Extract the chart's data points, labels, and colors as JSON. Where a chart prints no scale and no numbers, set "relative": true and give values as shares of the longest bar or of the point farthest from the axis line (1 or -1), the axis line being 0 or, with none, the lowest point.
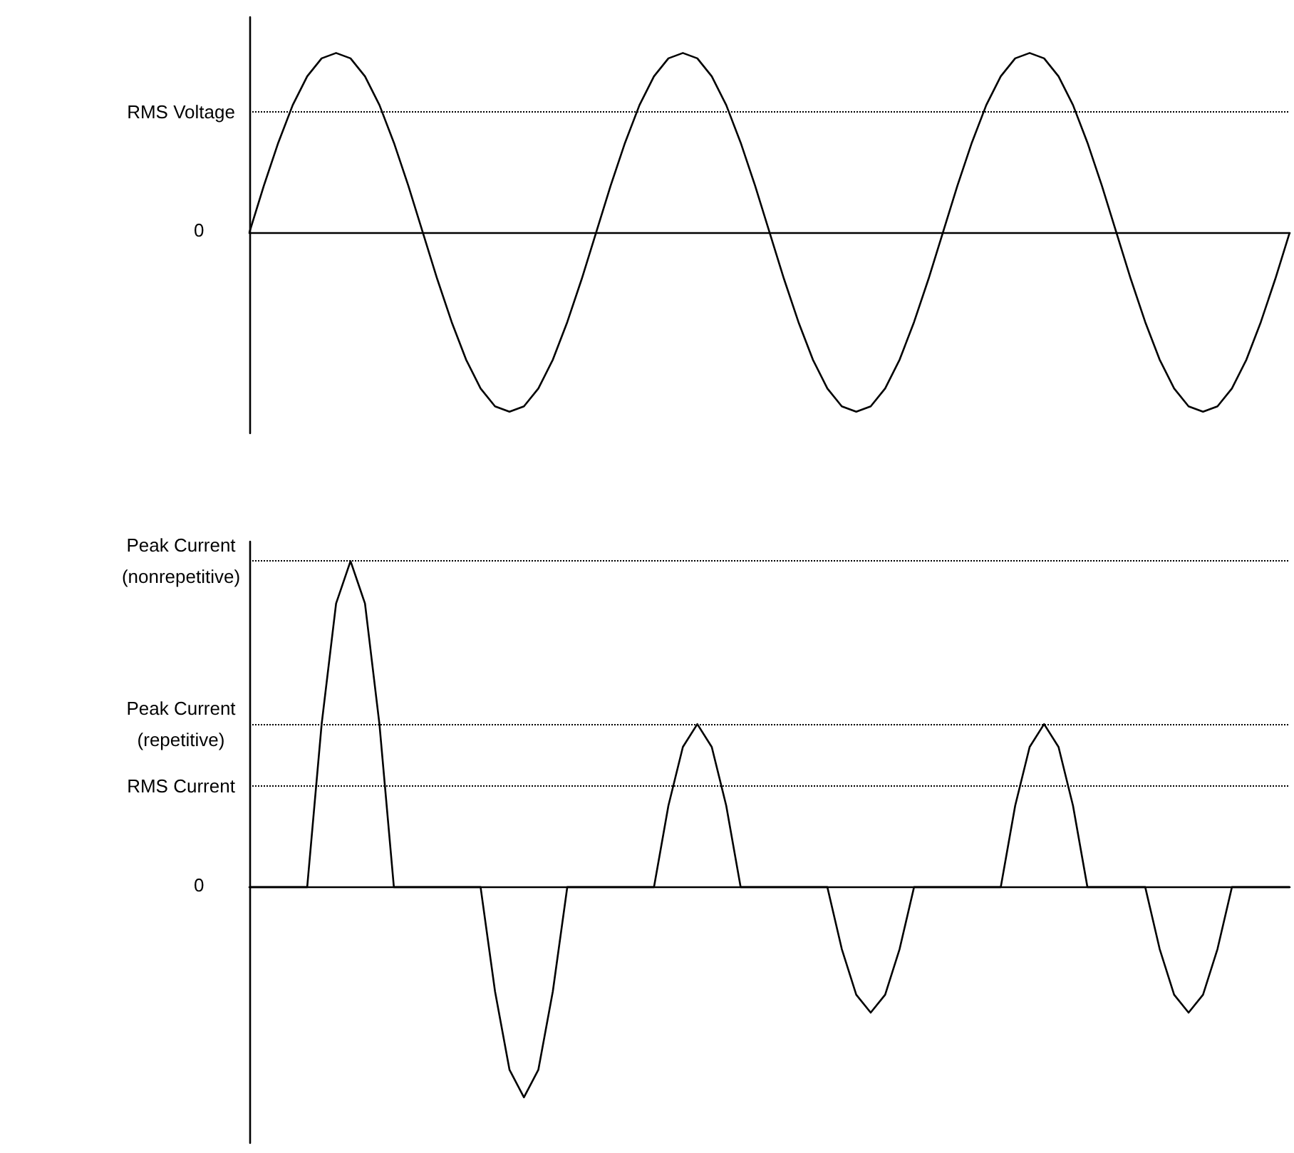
{
  "chart_data": [
    {
      "type": "line",
      "relative": true,
      "categories": [
        null,
        null,
        null,
        null,
        null,
        null,
        null,
        null,
        null,
        null,
        null,
        null,
        null,
        null,
        null,
        null,
        null,
        null,
        null,
        null,
        null,
        null,
        null,
        null,
        null,
        null,
        null,
        null,
        null,
        null,
        null,
        null,
        null,
        null,
        null,
        null,
        null,
        null,
        null,
        null,
        null,
        null,
        null,
        null,
        null,
        null,
        null,
        null,
        null,
        null,
        null,
        null,
        null,
        null,
        null,
        null,
        null,
        null,
        null,
        null,
        null,
        null,
        null,
        null,
        null,
        null,
        null,
        null,
        null,
        null,
        null,
        null,
        null
      ],
      "series": [
        {
          "color": "#000000",
          "values": [
            0,
            0.26,
            0.5,
            0.71,
            0.87,
            0.97,
            1,
            0.97,
            0.87,
            0.71,
            0.5,
            0.26,
            0,
            -0.26,
            -0.5,
            -0.71,
            -0.87,
            -0.97,
            -1,
            -0.97,
            -0.87,
            -0.71,
            -0.5,
            -0.26,
            0,
            0.26,
            0.5,
            0.71,
            0.87,
            0.97,
            1,
            0.97,
            0.87,
            0.71,
            0.5,
            0.26,
            0,
            -0.26,
            -0.5,
            -0.71,
            -0.87,
            -0.97,
            -1,
            -0.97,
            -0.87,
            -0.71,
            -0.5,
            -0.26,
            0,
            0.26,
            0.5,
            0.71,
            0.87,
            0.97,
            1,
            0.97,
            0.87,
            0.71,
            0.5,
            0.26,
            0,
            -0.26,
            -0.5,
            -0.71,
            -0.87,
            -0.97,
            -1,
            -0.97,
            -0.87,
            -0.71,
            -0.5,
            -0.26,
            0
          ]
        }
      ],
      "ref_lines": [
        {
          "axis": "y",
          "value": 0.67,
          "label": "RMS Voltage",
          "line_style": "dotted",
          "color": "#000000"
        }
      ],
      "annotations": [
        "0"
      ]
    },
    {
      "type": "line",
      "relative": true,
      "categories": [
        null,
        null,
        null,
        null,
        null,
        null,
        null,
        null,
        null,
        null,
        null,
        null,
        null,
        null,
        null,
        null,
        null,
        null,
        null,
        null,
        null,
        null,
        null,
        null,
        null,
        null,
        null,
        null,
        null,
        null,
        null,
        null,
        null,
        null,
        null,
        null,
        null,
        null,
        null,
        null,
        null,
        null,
        null,
        null,
        null,
        null,
        null,
        null,
        null,
        null,
        null,
        null,
        null,
        null,
        null,
        null,
        null,
        null,
        null,
        null,
        null,
        null,
        null,
        null,
        null,
        null,
        null,
        null,
        null,
        null,
        null,
        null,
        null
      ],
      "series": [
        {
          "color": "#000000",
          "values": [
            0,
            0,
            0,
            0,
            0,
            0.5,
            0.87,
            1,
            0.87,
            0.5,
            0,
            0,
            0,
            0,
            0,
            0,
            0,
            -0.32,
            -0.56,
            -0.645,
            -0.56,
            -0.32,
            0,
            0,
            0,
            0,
            0,
            0,
            0,
            0.25,
            0.43,
            0.5,
            0.43,
            0.25,
            0,
            0,
            0,
            0,
            0,
            0,
            0,
            -0.19,
            -0.33,
            -0.385,
            -0.33,
            -0.19,
            0,
            0,
            0,
            0,
            0,
            0,
            0,
            0.25,
            0.43,
            0.5,
            0.43,
            0.25,
            0,
            0,
            0,
            0,
            0,
            -0.19,
            -0.33,
            -0.385,
            -0.33,
            -0.19,
            0,
            0,
            0,
            0,
            0
          ]
        }
      ],
      "ref_lines": [
        {
          "axis": "y",
          "value": 1,
          "label": "Peak Current\n(nonrepetitive)",
          "line_style": "dotted",
          "color": "#000000"
        },
        {
          "axis": "y",
          "value": 0.5,
          "label": "Peak Current\n(repetitive)",
          "line_style": "dotted",
          "color": "#000000"
        },
        {
          "axis": "y",
          "value": 0.307,
          "label": "RMS Current",
          "line_style": "dotted",
          "color": "#000000"
        }
      ],
      "annotations": [
        "0"
      ]
    }
  ]
}
